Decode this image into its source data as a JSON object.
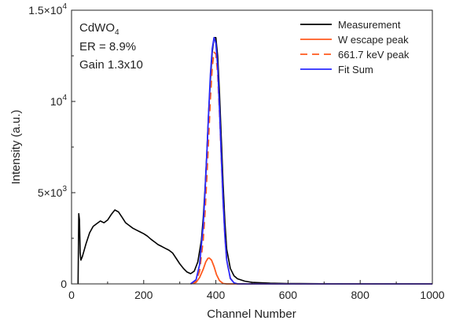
{
  "chart_data": {
    "type": "line",
    "xlabel": "Channel Number",
    "ylabel": "Intensity (a.u.)",
    "xlim": [
      0,
      1000
    ],
    "ylim": [
      0,
      15000
    ],
    "grid": false,
    "legend_position": "top-right",
    "x_ticks": [
      {
        "value": 0,
        "label": "0"
      },
      {
        "value": 200,
        "label": "200"
      },
      {
        "value": 400,
        "label": "400"
      },
      {
        "value": 600,
        "label": "600"
      },
      {
        "value": 800,
        "label": "800"
      },
      {
        "value": 1000,
        "label": "1000"
      }
    ],
    "y_ticks": [
      {
        "value": 0,
        "label": "0",
        "exp": ""
      },
      {
        "value": 5000,
        "label": "5×10",
        "exp": "3"
      },
      {
        "value": 10000,
        "label": "10",
        "exp": "4"
      },
      {
        "value": 15000,
        "label": "1.5×10",
        "exp": "4"
      }
    ],
    "annotations": {
      "material_base": "CdWO",
      "material_sub": "4",
      "resolution": "ER = 8.9%",
      "gain": "Gain 1.3x10"
    },
    "series": [
      {
        "name": "Measurement",
        "color": "#000000",
        "dash": "solid",
        "x": [
          18,
          20,
          22,
          24,
          26,
          30,
          40,
          50,
          60,
          70,
          80,
          90,
          100,
          110,
          120,
          130,
          140,
          150,
          160,
          170,
          180,
          190,
          200,
          210,
          220,
          230,
          240,
          250,
          260,
          270,
          280,
          290,
          300,
          310,
          320,
          330,
          340,
          350,
          360,
          365,
          370,
          375,
          380,
          385,
          390,
          395,
          400,
          405,
          410,
          415,
          420,
          425,
          430,
          440,
          450,
          460,
          480,
          500,
          550,
          600,
          700,
          800,
          900,
          1000
        ],
        "y": [
          0,
          3850,
          3500,
          1700,
          1300,
          1500,
          2200,
          2800,
          3150,
          3300,
          3450,
          3350,
          3500,
          3800,
          4050,
          3950,
          3650,
          3350,
          3200,
          3050,
          2950,
          2850,
          2750,
          2620,
          2450,
          2300,
          2150,
          2050,
          1950,
          1850,
          1700,
          1400,
          1100,
          850,
          650,
          560,
          700,
          1200,
          2400,
          3600,
          5200,
          7200,
          9400,
          11200,
          12700,
          13500,
          13500,
          12500,
          10500,
          8000,
          5500,
          3400,
          1900,
          850,
          450,
          280,
          150,
          80,
          40,
          20,
          10,
          5,
          0,
          0
        ]
      },
      {
        "name": "W escape peak",
        "color": "#ff5a1f",
        "dash": "solid",
        "x": [
          330,
          345,
          355,
          365,
          372,
          378,
          382,
          388,
          395,
          402,
          410,
          420,
          430,
          1000
        ],
        "y": [
          0,
          80,
          350,
          800,
          1200,
          1400,
          1420,
          1300,
          950,
          500,
          180,
          20,
          0,
          0
        ]
      },
      {
        "name": "661.7 keV peak",
        "color": "#ff5a1f",
        "dash": "dashed",
        "x": [
          330,
          345,
          355,
          365,
          370,
          375,
          380,
          385,
          390,
          395,
          400,
          405,
          410,
          415,
          420,
          425,
          430,
          440,
          450,
          460,
          1000
        ],
        "y": [
          0,
          150,
          700,
          2400,
          3900,
          5800,
          8000,
          10200,
          11900,
          12700,
          12600,
          11500,
          9400,
          6900,
          4500,
          2600,
          1300,
          300,
          60,
          0,
          0
        ]
      },
      {
        "name": "Fit Sum",
        "color": "#2a2aff",
        "dash": "solid",
        "x": [
          330,
          345,
          355,
          365,
          370,
          375,
          380,
          385,
          390,
          395,
          400,
          405,
          410,
          415,
          420,
          425,
          430,
          440,
          450,
          460,
          1000
        ],
        "y": [
          0,
          230,
          1050,
          3200,
          5000,
          7100,
          9400,
          11500,
          12900,
          13500,
          13200,
          11900,
          9600,
          7000,
          4550,
          2600,
          1300,
          300,
          60,
          0,
          0
        ]
      }
    ]
  }
}
